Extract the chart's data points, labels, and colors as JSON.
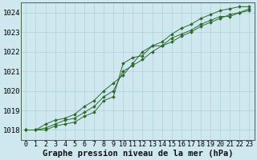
{
  "xlabel": "Graphe pression niveau de la mer (hPa)",
  "ylim": [
    1017.5,
    1024.5
  ],
  "xlim": [
    -0.5,
    23.5
  ],
  "yticks": [
    1018,
    1019,
    1020,
    1021,
    1022,
    1023,
    1024
  ],
  "xticks": [
    0,
    1,
    2,
    3,
    4,
    5,
    6,
    7,
    8,
    9,
    10,
    11,
    12,
    13,
    14,
    15,
    16,
    17,
    18,
    19,
    20,
    21,
    22,
    23
  ],
  "bg_color": "#cfe8ef",
  "grid_color": "#b0d0d8",
  "line_color": "#2d6a2d",
  "marker_color": "#2d6a2d",
  "series1": [
    1018.0,
    1018.0,
    1018.0,
    1018.2,
    1018.3,
    1018.4,
    1018.7,
    1018.9,
    1019.5,
    1019.7,
    1021.4,
    1021.7,
    1021.8,
    1022.3,
    1022.3,
    1022.7,
    1022.9,
    1023.1,
    1023.4,
    1023.6,
    1023.8,
    1023.8,
    1024.0,
    1024.1
  ],
  "series2": [
    1018.0,
    1018.0,
    1018.1,
    1018.3,
    1018.5,
    1018.6,
    1018.9,
    1019.2,
    1019.7,
    1020.0,
    1021.0,
    1021.3,
    1021.6,
    1022.0,
    1022.3,
    1022.5,
    1022.8,
    1023.0,
    1023.3,
    1023.5,
    1023.7,
    1023.9,
    1024.0,
    1024.2
  ],
  "series3": [
    1018.0,
    1018.0,
    1018.3,
    1018.5,
    1018.6,
    1018.8,
    1019.2,
    1019.5,
    1020.0,
    1020.4,
    1020.8,
    1021.4,
    1022.0,
    1022.3,
    1022.5,
    1022.9,
    1023.2,
    1023.4,
    1023.7,
    1023.9,
    1024.1,
    1024.2,
    1024.3,
    1024.3
  ],
  "tick_fontsize": 6,
  "label_fontsize": 7.5
}
